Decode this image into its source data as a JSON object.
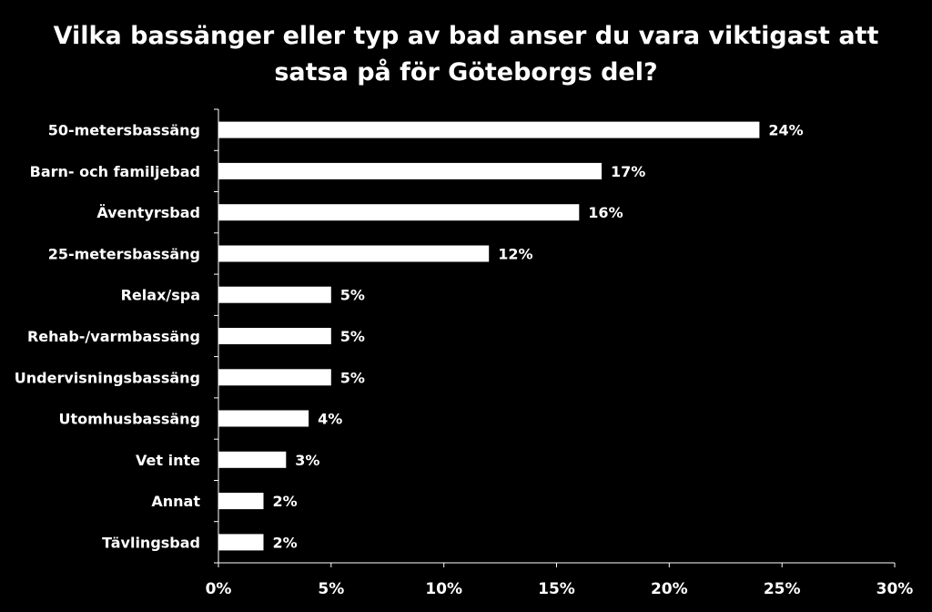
{
  "chart_data": {
    "type": "bar",
    "orientation": "horizontal",
    "title_lines": [
      "Vilka bassänger eller typ av bad anser du vara viktigast att",
      "satsa på för Göteborgs del?"
    ],
    "categories": [
      "50-metersbassäng",
      "Barn- och familjebad",
      "Äventyrsbad",
      "25-metersbassäng",
      "Relax/spa",
      "Rehab-/varmbassäng",
      "Undervisningsbassäng",
      "Utomhusbassäng",
      "Vet inte",
      "Annat",
      "Tävlingsbad"
    ],
    "values": [
      24,
      17,
      16,
      12,
      5,
      5,
      5,
      4,
      3,
      2,
      2
    ],
    "value_labels": [
      "24%",
      "17%",
      "16%",
      "12%",
      "5%",
      "5%",
      "5%",
      "4%",
      "3%",
      "2%",
      "2%"
    ],
    "xlim": [
      0,
      30
    ],
    "x_ticks": [
      0,
      5,
      10,
      15,
      20,
      25,
      30
    ],
    "x_tick_labels": [
      "0%",
      "5%",
      "10%",
      "15%",
      "20%",
      "25%",
      "30%"
    ],
    "grid": false,
    "legend": "none"
  },
  "colors": {
    "background": "#000000",
    "bar": "#ffffff",
    "text": "#ffffff",
    "axis": "#ffffff"
  }
}
